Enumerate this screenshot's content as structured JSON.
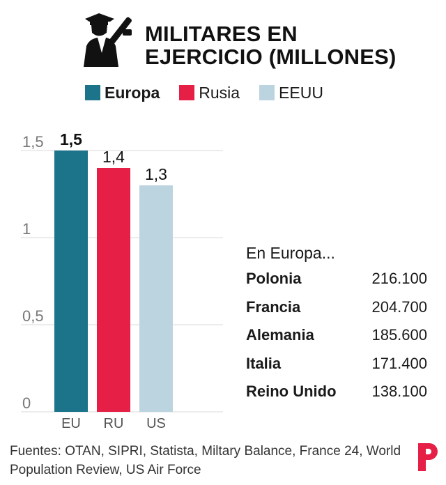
{
  "header": {
    "title_line1": "MILITARES EN",
    "title_line2": "EJERCICIO (MILLONES)",
    "icon": "soldier-icon"
  },
  "legend": [
    {
      "label": "Europa",
      "color": "#1b7489"
    },
    {
      "label": "Rusia",
      "color": "#e51f45"
    },
    {
      "label": "EEUU",
      "color": "#bcd4df"
    }
  ],
  "chart_data": {
    "type": "bar",
    "categories": [
      "EU",
      "RU",
      "US"
    ],
    "values": [
      1.5,
      1.4,
      1.3
    ],
    "value_labels": [
      "1,5",
      "1,4",
      "1,3"
    ],
    "colors": [
      "#1b7489",
      "#e51f45",
      "#bcd4df"
    ],
    "title": "MILITARES EN EJERCICIO (MILLONES)",
    "ylim": [
      0,
      1.5
    ],
    "yticks": [
      0,
      0.5,
      1,
      1.5
    ],
    "ytick_labels": [
      "0",
      "0,5",
      "1",
      "1,5"
    ],
    "grid": true,
    "legend_position": "top"
  },
  "table": {
    "title": "En Europa...",
    "rows": [
      {
        "country": "Polonia",
        "value": "216.100"
      },
      {
        "country": "Francia",
        "value": "204.700"
      },
      {
        "country": "Alemania",
        "value": "185.600"
      },
      {
        "country": "Italia",
        "value": "171.400"
      },
      {
        "country": "Reino Unido",
        "value": "138.100"
      }
    ]
  },
  "footer": {
    "sources": "Fuentes: OTAN, SIPRI, Statista, Miltary Balance, France 24, World Population Review, US Air Force",
    "logo": "publico-p-logo",
    "logo_color": "#e51f45"
  }
}
